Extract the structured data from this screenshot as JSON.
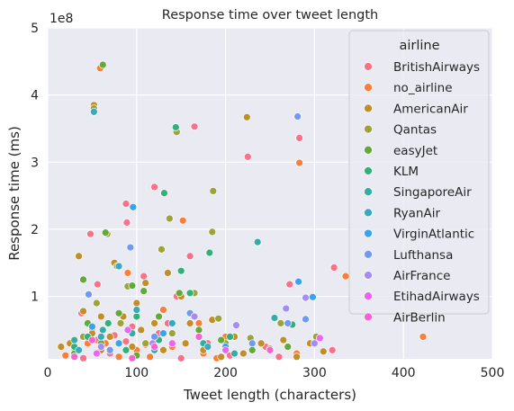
{
  "chart_data": {
    "type": "scatter",
    "title": "Response time over tweet length",
    "xlabel": "Tweet length (characters)",
    "ylabel": "Response time (ms)",
    "y_offset_label": "1e8",
    "xlim": [
      0,
      500
    ],
    "ylim": [
      0,
      5
    ],
    "y_unit_multiplier": 100000000,
    "x_ticks": [
      0,
      100,
      200,
      300,
      400,
      500
    ],
    "y_ticks": [
      1,
      2,
      3,
      4,
      5
    ],
    "grid": true,
    "legend_title": "airline",
    "legend_position": "top-right",
    "series": [
      {
        "name": "BritishAirways",
        "color": "#f77189",
        "points": [
          [
            60,
            4.4
          ],
          [
            165,
            3.53
          ],
          [
            283,
            3.36
          ],
          [
            225,
            3.08
          ],
          [
            120,
            2.63
          ],
          [
            88,
            2.38
          ],
          [
            89,
            2.1
          ],
          [
            48,
            1.93
          ],
          [
            108,
            1.3
          ],
          [
            38,
            0.75
          ],
          [
            56,
            1.18
          ],
          [
            160,
            1.6
          ],
          [
            322,
            1.43
          ],
          [
            272,
            1.18
          ],
          [
            145,
            1.0
          ],
          [
            135,
            0.6
          ],
          [
            95,
            0.55
          ],
          [
            75,
            0.42
          ],
          [
            55,
            0.35
          ],
          [
            110,
            0.28
          ],
          [
            180,
            0.3
          ],
          [
            245,
            0.25
          ],
          [
            320,
            0.2
          ],
          [
            30,
            0.22
          ],
          [
            70,
            0.15
          ],
          [
            205,
            0.12
          ],
          [
            260,
            0.1
          ],
          [
            40,
            0.08
          ],
          [
            150,
            0.08
          ],
          [
            88,
            0.33
          ],
          [
            125,
            0.45
          ]
        ]
      },
      {
        "name": "no_airline",
        "color": "#f77f3a",
        "points": [
          [
            59,
            4.4
          ],
          [
            283,
            2.99
          ],
          [
            152,
            2.13
          ],
          [
            422,
            0.4
          ],
          [
            335,
            1.3
          ],
          [
            90,
            1.35
          ],
          [
            130,
            0.8
          ],
          [
            170,
            0.6
          ],
          [
            200,
            0.4
          ],
          [
            50,
            0.5
          ],
          [
            65,
            0.3
          ],
          [
            100,
            0.2
          ],
          [
            140,
            0.25
          ],
          [
            230,
            0.2
          ],
          [
            280,
            0.15
          ],
          [
            20,
            0.12
          ],
          [
            115,
            0.1
          ],
          [
            175,
            0.15
          ],
          [
            45,
            0.3
          ],
          [
            80,
            0.1
          ],
          [
            255,
            0.06
          ],
          [
            190,
            0.08
          ]
        ]
      },
      {
        "name": "AmericanAir",
        "color": "#c18f29",
        "points": [
          [
            52,
            3.85
          ],
          [
            224,
            3.67
          ],
          [
            35,
            1.6
          ],
          [
            75,
            1.5
          ],
          [
            110,
            1.2
          ],
          [
            135,
            1.35
          ],
          [
            150,
            1.0
          ],
          [
            40,
            0.78
          ],
          [
            60,
            0.7
          ],
          [
            85,
            0.7
          ],
          [
            100,
            0.9
          ],
          [
            120,
            0.6
          ],
          [
            160,
            0.6
          ],
          [
            185,
            0.65
          ],
          [
            210,
            0.4
          ],
          [
            240,
            0.3
          ],
          [
            265,
            0.35
          ],
          [
            295,
            0.3
          ],
          [
            310,
            0.18
          ],
          [
            330,
            0.05
          ],
          [
            25,
            0.3
          ],
          [
            50,
            0.45
          ],
          [
            70,
            0.4
          ],
          [
            95,
            0.25
          ],
          [
            130,
            0.2
          ],
          [
            155,
            0.3
          ],
          [
            175,
            0.2
          ],
          [
            220,
            0.15
          ],
          [
            280,
            0.1
          ],
          [
            105,
            0.5
          ],
          [
            60,
            0.2
          ],
          [
            15,
            0.25
          ],
          [
            195,
            0.1
          ]
        ]
      },
      {
        "name": "Qantas",
        "color": "#9da23a",
        "points": [
          [
            52,
            3.8
          ],
          [
            145,
            3.45
          ],
          [
            186,
            2.57
          ],
          [
            185,
            1.96
          ],
          [
            67,
            1.93
          ],
          [
            137,
            2.16
          ],
          [
            128,
            1.7
          ],
          [
            78,
            1.45
          ],
          [
            55,
            0.9
          ],
          [
            90,
            1.15
          ],
          [
            165,
            1.05
          ],
          [
            192,
            0.67
          ],
          [
            228,
            0.38
          ],
          [
            262,
            0.6
          ],
          [
            302,
            0.4
          ],
          [
            250,
            0.22
          ],
          [
            110,
            0.3
          ],
          [
            40,
            0.4
          ],
          [
            140,
            0.45
          ],
          [
            200,
            0.3
          ],
          [
            82,
            0.6
          ],
          [
            35,
            0.2
          ]
        ]
      },
      {
        "name": "easyJet",
        "color": "#63a83b",
        "points": [
          [
            62,
            4.45
          ],
          [
            65,
            1.95
          ],
          [
            40,
            1.25
          ],
          [
            95,
            1.16
          ],
          [
            108,
            1.08
          ],
          [
            148,
            1.05
          ],
          [
            80,
            0.75
          ],
          [
            45,
            0.6
          ],
          [
            125,
            0.7
          ],
          [
            170,
            0.5
          ],
          [
            60,
            0.3
          ],
          [
            195,
            0.35
          ],
          [
            230,
            0.2
          ],
          [
            30,
            0.15
          ],
          [
            270,
            0.25
          ],
          [
            100,
            0.12
          ]
        ]
      },
      {
        "name": "KLM",
        "color": "#33b07a",
        "points": [
          [
            144,
            3.52
          ],
          [
            131,
            2.54
          ],
          [
            182,
            1.65
          ],
          [
            150,
            1.38
          ],
          [
            160,
            1.05
          ],
          [
            68,
            0.6
          ],
          [
            100,
            0.7
          ],
          [
            45,
            0.4
          ],
          [
            125,
            0.35
          ],
          [
            205,
            0.4
          ],
          [
            275,
            0.58
          ],
          [
            30,
            0.25
          ],
          [
            88,
            0.2
          ]
        ]
      },
      {
        "name": "SingaporeAir",
        "color": "#36ada4",
        "points": [
          [
            236,
            1.81
          ],
          [
            255,
            0.68
          ],
          [
            30,
            0.35
          ],
          [
            62,
            0.5
          ],
          [
            95,
            0.45
          ],
          [
            175,
            0.3
          ],
          [
            120,
            0.2
          ],
          [
            210,
            0.15
          ]
        ]
      },
      {
        "name": "RyanAir",
        "color": "#38aabf",
        "points": [
          [
            52,
            3.75
          ],
          [
            80,
            1.45
          ],
          [
            100,
            0.8
          ],
          [
            140,
            0.6
          ],
          [
            60,
            0.4
          ],
          [
            35,
            0.2
          ],
          [
            180,
            0.25
          ]
        ]
      },
      {
        "name": "VirginAtlantic",
        "color": "#3ba3ec",
        "points": [
          [
            96,
            2.33
          ],
          [
            298,
            0.99
          ],
          [
            282,
            1.22
          ],
          [
            50,
            0.55
          ],
          [
            130,
            0.45
          ],
          [
            80,
            0.3
          ],
          [
            200,
            0.25
          ]
        ]
      },
      {
        "name": "Lufthansa",
        "color": "#6e9af1",
        "points": [
          [
            281,
            3.68
          ],
          [
            93,
            1.73
          ],
          [
            46,
            1.03
          ],
          [
            290,
            0.66
          ],
          [
            160,
            0.75
          ],
          [
            270,
            0.6
          ],
          [
            120,
            0.4
          ],
          [
            70,
            0.2
          ],
          [
            230,
            0.3
          ]
        ]
      },
      {
        "name": "AirFrance",
        "color": "#a48cf4",
        "points": [
          [
            290,
            0.98
          ],
          [
            268,
            0.82
          ],
          [
            212,
            0.57
          ],
          [
            165,
            0.7
          ],
          [
            118,
            0.3
          ],
          [
            60,
            0.25
          ],
          [
            300,
            0.3
          ]
        ]
      },
      {
        "name": "EtihadAirways",
        "color": "#e866f4",
        "points": [
          [
            306,
            0.38
          ],
          [
            140,
            0.3
          ],
          [
            90,
            0.5
          ],
          [
            200,
            0.2
          ],
          [
            55,
            0.15
          ]
        ]
      },
      {
        "name": "AirBerlin",
        "color": "#f563d3",
        "points": [
          [
            50,
            0.35
          ],
          [
            120,
            0.25
          ],
          [
            170,
            0.4
          ],
          [
            250,
            0.2
          ],
          [
            30,
            0.1
          ],
          [
            95,
            0.08
          ]
        ]
      }
    ]
  }
}
